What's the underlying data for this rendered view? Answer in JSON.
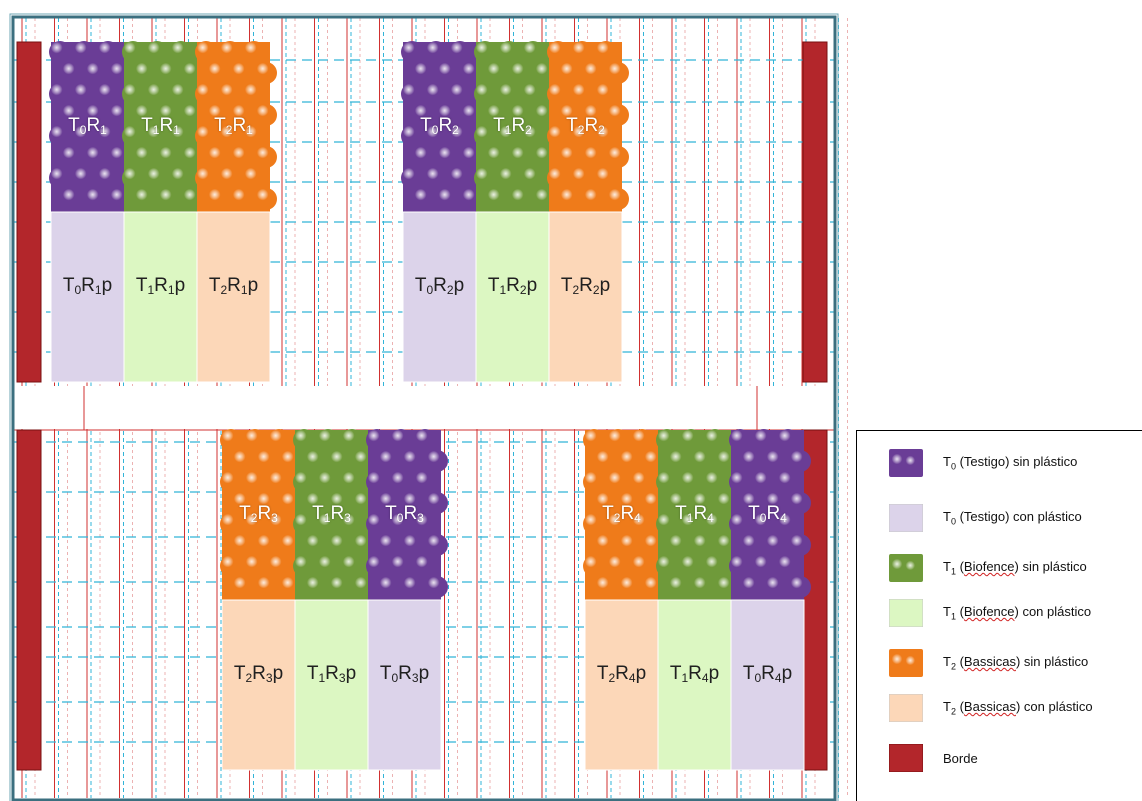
{
  "colors": {
    "purple": "#6a3d96",
    "purple_light": "#dcd3ea",
    "green": "#6f9a3a",
    "green_light": "#dcf7c2",
    "orange": "#ef7b1a",
    "orange_light": "#fcd7b8",
    "border_red": "#b3262b",
    "grid_red": "#d03030",
    "grid_cyan": "#30b4d8",
    "frame": "#3b6f7f"
  },
  "plots": [
    {
      "id": "T0R1",
      "t": "0",
      "r": "1",
      "treatment": "T0",
      "plastic": false
    },
    {
      "id": "T1R1",
      "t": "1",
      "r": "1",
      "treatment": "T1",
      "plastic": false
    },
    {
      "id": "T2R1",
      "t": "2",
      "r": "1",
      "treatment": "T2",
      "plastic": false
    },
    {
      "id": "T0R1p",
      "t": "0",
      "r": "1",
      "treatment": "T0",
      "plastic": true
    },
    {
      "id": "T1R1p",
      "t": "1",
      "r": "1",
      "treatment": "T1",
      "plastic": true
    },
    {
      "id": "T2R1p",
      "t": "2",
      "r": "1",
      "treatment": "T2",
      "plastic": true
    },
    {
      "id": "T0R2",
      "t": "0",
      "r": "2",
      "treatment": "T0",
      "plastic": false
    },
    {
      "id": "T1R2",
      "t": "1",
      "r": "2",
      "treatment": "T1",
      "plastic": false
    },
    {
      "id": "T2R2",
      "t": "2",
      "r": "2",
      "treatment": "T2",
      "plastic": false
    },
    {
      "id": "T0R2p",
      "t": "0",
      "r": "2",
      "treatment": "T0",
      "plastic": true
    },
    {
      "id": "T1R2p",
      "t": "1",
      "r": "2",
      "treatment": "T1",
      "plastic": true
    },
    {
      "id": "T2R2p",
      "t": "2",
      "r": "2",
      "treatment": "T2",
      "plastic": true
    },
    {
      "id": "T2R3",
      "t": "2",
      "r": "3",
      "treatment": "T2",
      "plastic": false
    },
    {
      "id": "T1R3",
      "t": "1",
      "r": "3",
      "treatment": "T1",
      "plastic": false
    },
    {
      "id": "T0R3",
      "t": "0",
      "r": "3",
      "treatment": "T0",
      "plastic": false
    },
    {
      "id": "T2R3p",
      "t": "2",
      "r": "3",
      "treatment": "T2",
      "plastic": true
    },
    {
      "id": "T1R3p",
      "t": "1",
      "r": "3",
      "treatment": "T1",
      "plastic": true
    },
    {
      "id": "T0R3p",
      "t": "0",
      "r": "3",
      "treatment": "T0",
      "plastic": true
    },
    {
      "id": "T2R4",
      "t": "2",
      "r": "4",
      "treatment": "T2",
      "plastic": false
    },
    {
      "id": "T1R4",
      "t": "1",
      "r": "4",
      "treatment": "T1",
      "plastic": false
    },
    {
      "id": "T0R4",
      "t": "0",
      "r": "4",
      "treatment": "T0",
      "plastic": false
    },
    {
      "id": "T2R4p",
      "t": "2",
      "r": "4",
      "treatment": "T2",
      "plastic": true
    },
    {
      "id": "T1R4p",
      "t": "1",
      "r": "4",
      "treatment": "T1",
      "plastic": true
    },
    {
      "id": "T0R4p",
      "t": "0",
      "r": "4",
      "treatment": "T0",
      "plastic": true
    }
  ],
  "legend": [
    {
      "key": "T0-sin",
      "swatch": "purple-balls",
      "sub": "0",
      "name": "(Testigo)",
      "suffix": "sin plástico"
    },
    {
      "key": "T0-con",
      "swatch": "purple-light",
      "sub": "0",
      "name": "(Testigo)",
      "suffix": "con plástico"
    },
    {
      "key": "T1-sin",
      "swatch": "green-balls",
      "sub": "1",
      "name": "(Biofence)",
      "suffix": "sin plástico"
    },
    {
      "key": "T1-con",
      "swatch": "green-light",
      "sub": "1",
      "name": "(Biofence)",
      "suffix": "con plástico"
    },
    {
      "key": "T2-sin",
      "swatch": "orange-balls",
      "sub": "2",
      "name": "(Bassicas)",
      "suffix": "sin plástico"
    },
    {
      "key": "T2-con",
      "swatch": "orange-light",
      "sub": "2",
      "name": "(Bassicas)",
      "suffix": "con plástico"
    },
    {
      "key": "borde",
      "swatch": "border",
      "label": "Borde"
    }
  ]
}
